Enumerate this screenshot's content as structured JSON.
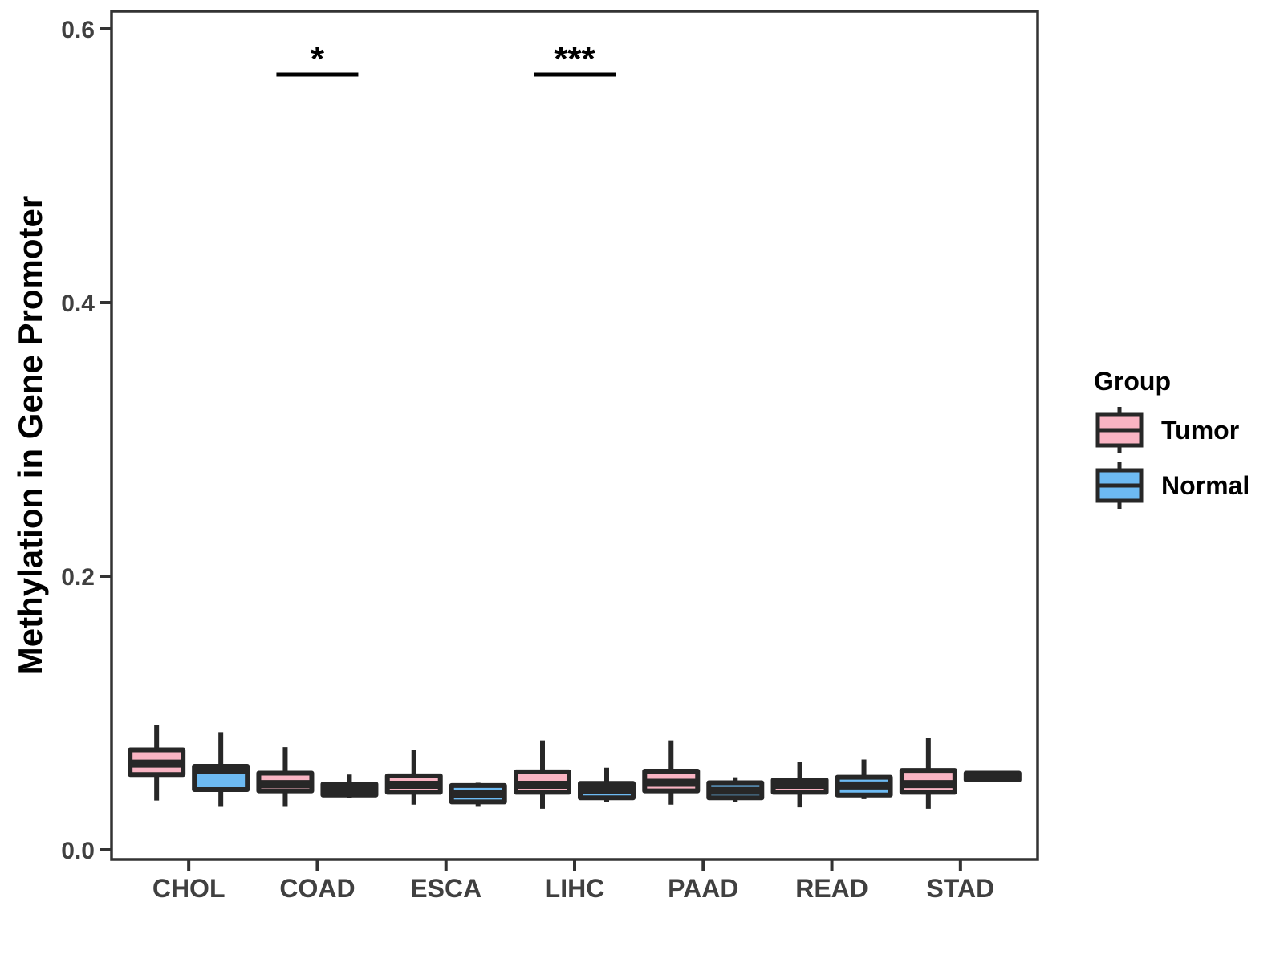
{
  "chart_data": {
    "type": "boxplot",
    "title": "",
    "xlabel": "",
    "ylabel": "Methylation in Gene Promoter",
    "categories": [
      "CHOL",
      "COAD",
      "ESCA",
      "LIHC",
      "PAAD",
      "READ",
      "STAD"
    ],
    "y_ticks": [
      0.0,
      0.2,
      0.4,
      0.6
    ],
    "y_tick_labels": [
      "0.0",
      "0.2",
      "0.4",
      "0.6"
    ],
    "ylim": [
      0.0,
      0.6
    ],
    "grid": "off",
    "legend": {
      "title": "Group",
      "position": "right"
    },
    "series": [
      {
        "name": "Tumor",
        "color": "#F9B4C3",
        "stat_order": [
          "whisker_low",
          "q1",
          "median",
          "q3",
          "whisker_high"
        ],
        "values": [
          [
            0.036,
            0.055,
            0.063,
            0.073,
            0.091
          ],
          [
            0.032,
            0.043,
            0.048,
            0.056,
            0.075
          ],
          [
            0.033,
            0.042,
            0.0475,
            0.054,
            0.073
          ],
          [
            0.03,
            0.042,
            0.0475,
            0.057,
            0.08
          ],
          [
            0.033,
            0.043,
            0.049,
            0.0575,
            0.08
          ],
          [
            0.031,
            0.042,
            0.0475,
            0.051,
            0.0645
          ],
          [
            0.03,
            0.042,
            0.048,
            0.058,
            0.0815
          ]
        ]
      },
      {
        "name": "Normal",
        "color": "#6DBAF2",
        "stat_order": [
          "whisker_low",
          "q1",
          "median",
          "q3",
          "whisker_high"
        ],
        "values": [
          [
            0.032,
            0.044,
            0.0585,
            0.061,
            0.086
          ],
          [
            0.038,
            0.04,
            0.044,
            0.048,
            0.055
          ],
          [
            0.032,
            0.035,
            0.041,
            0.047,
            0.049
          ],
          [
            0.035,
            0.038,
            0.044,
            0.0485,
            0.06
          ],
          [
            0.035,
            0.038,
            0.043,
            0.049,
            0.053
          ],
          [
            0.037,
            0.04,
            0.047,
            0.053,
            0.066
          ],
          [
            0.05,
            0.051,
            0.0535,
            0.056,
            0.057
          ]
        ]
      }
    ],
    "significance": [
      {
        "category": "COAD",
        "label": "*"
      },
      {
        "category": "LIHC",
        "label": "***"
      }
    ],
    "style": {
      "tumor_fill": "#F9B4C3",
      "normal_fill": "#6DBAF2",
      "box_border": "#272727",
      "panel_border": "#333333",
      "axis_line": "#333333",
      "axis_text": "#404040",
      "title_text": "#000000",
      "significance_color": "#000000",
      "background": "#ffffff"
    }
  }
}
